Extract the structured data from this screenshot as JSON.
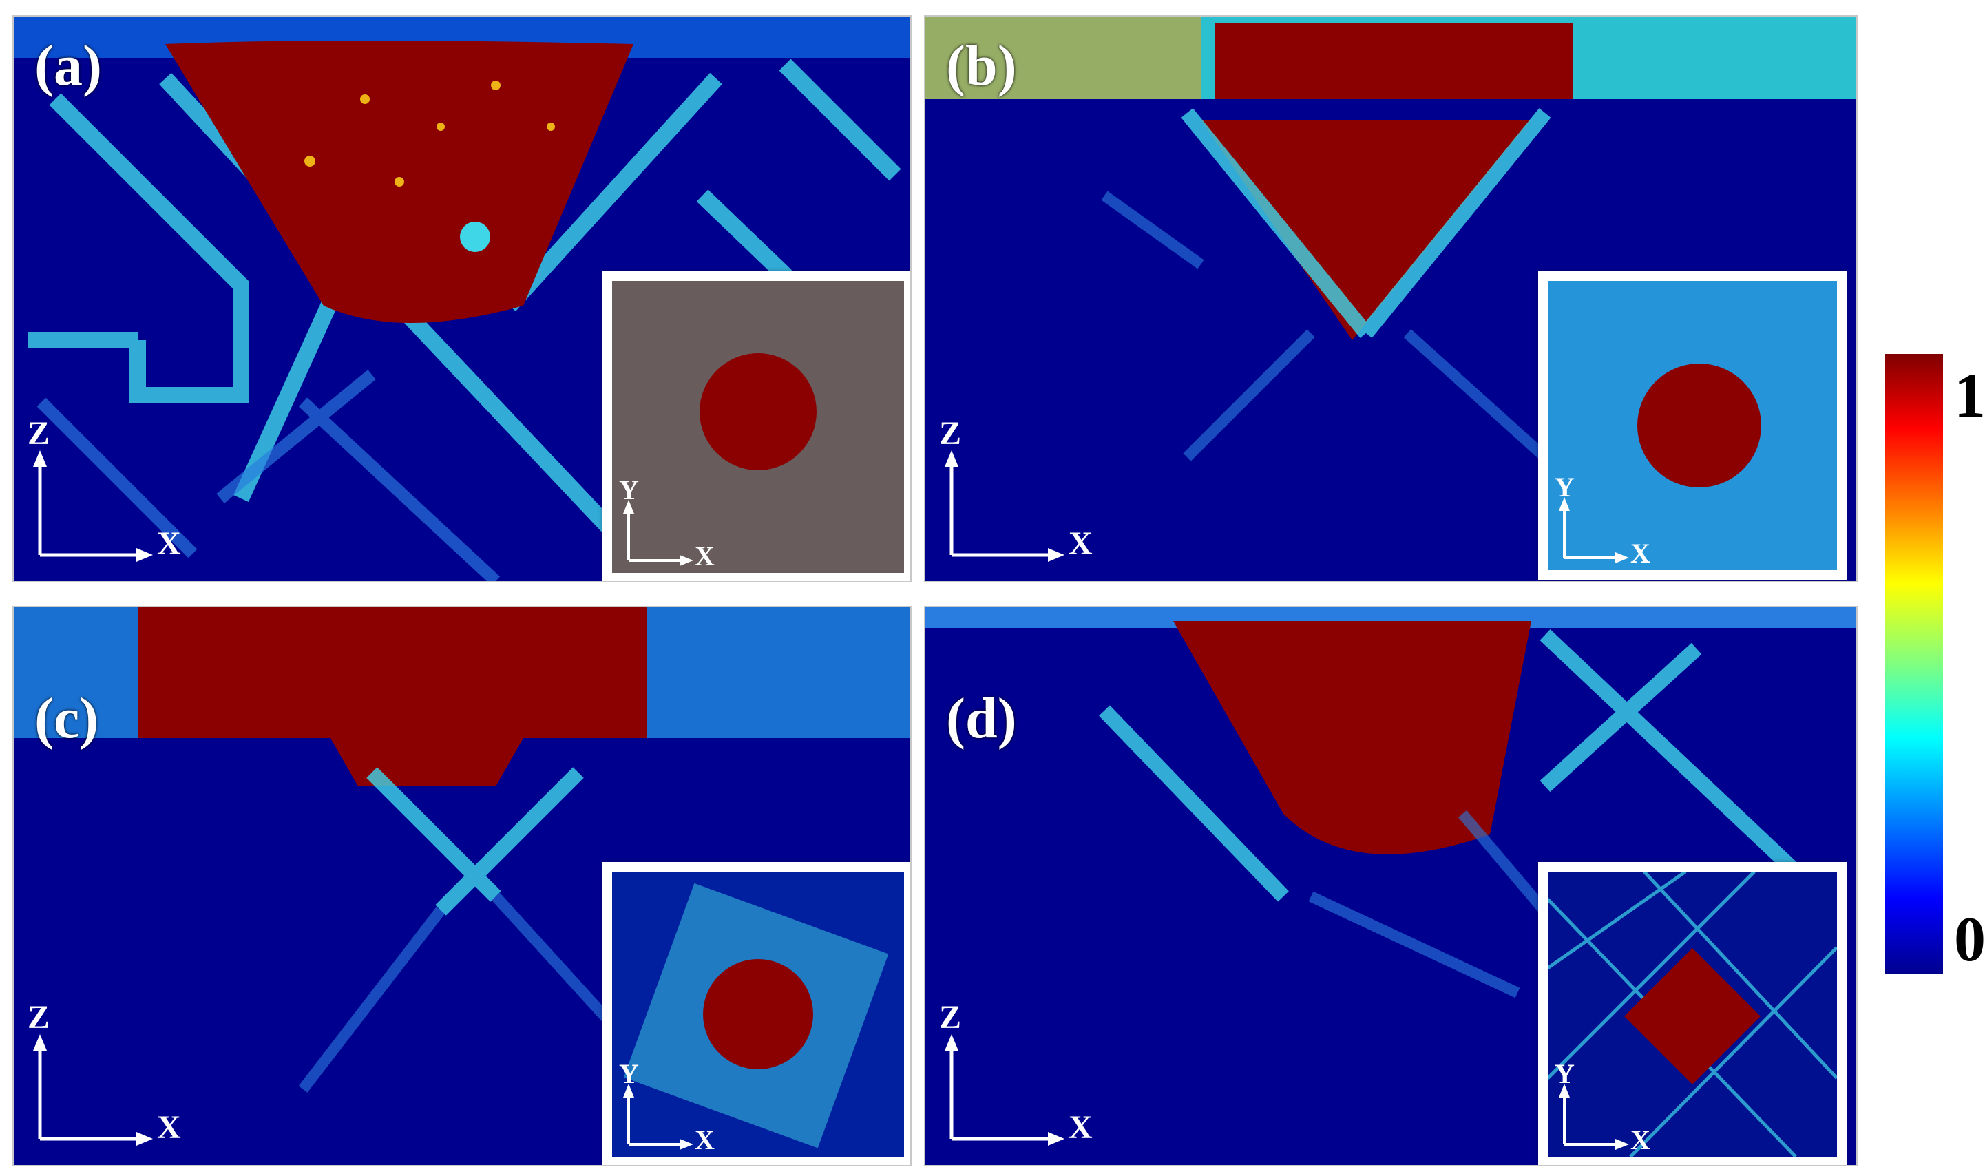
{
  "panels": [
    {
      "id": "a",
      "label": "(a)",
      "axes": {
        "vertical": "Z",
        "horizontal": "X"
      },
      "inset_axes": {
        "vertical": "Y",
        "horizontal": "X"
      }
    },
    {
      "id": "b",
      "label": "(b)",
      "axes": {
        "vertical": "Z",
        "horizontal": "X"
      },
      "inset_axes": {
        "vertical": "Y",
        "horizontal": "X"
      }
    },
    {
      "id": "c",
      "label": "(c)",
      "axes": {
        "vertical": "Z",
        "horizontal": "X"
      },
      "inset_axes": {
        "vertical": "Y",
        "horizontal": "X"
      }
    },
    {
      "id": "d",
      "label": "(d)",
      "axes": {
        "vertical": "Z",
        "horizontal": "X"
      },
      "inset_axes": {
        "vertical": "Y",
        "horizontal": "X"
      }
    }
  ],
  "colorbar": {
    "max_label": "1",
    "min_label": "0"
  },
  "colors": {
    "background_navy": "#00008f",
    "low": "#0000ff",
    "mid": "#00ffff",
    "mid_high": "#ffff00",
    "high": "#ff0000",
    "max": "#8b0000"
  }
}
